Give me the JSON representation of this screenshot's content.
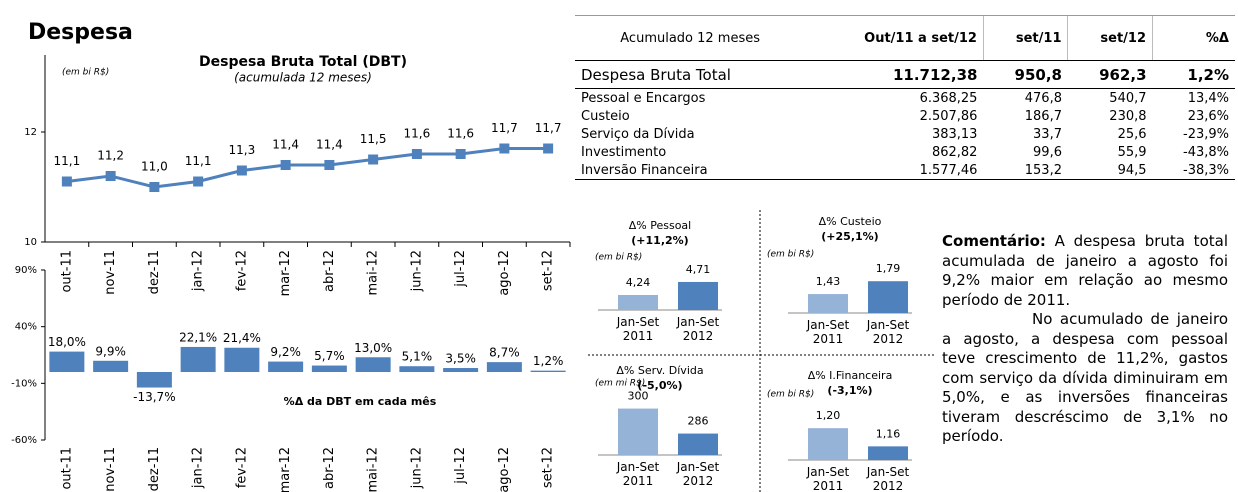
{
  "title": "Despesa",
  "chart_data": [
    {
      "type": "line",
      "title": "Despesa Bruta Total (DBT)",
      "subtitle": "(acumulada 12 meses)",
      "unit": "(em bi R$)",
      "categories": [
        "out-11",
        "nov-11",
        "dez-11",
        "jan-12",
        "fev-12",
        "mar-12",
        "abr-12",
        "mai-12",
        "jun-12",
        "jul-12",
        "ago-12",
        "set-12"
      ],
      "values": [
        11.1,
        11.2,
        11.0,
        11.1,
        11.3,
        11.4,
        11.4,
        11.5,
        11.6,
        11.6,
        11.7,
        11.7
      ],
      "value_labels": [
        "11,1",
        "11,2",
        "11,0",
        "11,1",
        "11,3",
        "11,4",
        "11,4",
        "11,5",
        "11,6",
        "11,6",
        "11,7",
        "11,7"
      ],
      "color": "#4f81bd",
      "ylim": [
        10,
        13.4
      ],
      "yticks": [
        10,
        12
      ]
    },
    {
      "type": "bar",
      "title": "%Δ da DBT em cada mês",
      "categories": [
        "out-11",
        "nov-11",
        "dez-11",
        "jan-12",
        "fev-12",
        "mar-12",
        "abr-12",
        "mai-12",
        "jun-12",
        "jul-12",
        "ago-12",
        "set-12"
      ],
      "values": [
        18.0,
        9.9,
        -13.7,
        22.1,
        21.4,
        9.2,
        5.7,
        13.0,
        5.1,
        3.5,
        8.7,
        1.2
      ],
      "value_labels": [
        "18,0%",
        "9,9%",
        "-13,7%",
        "22,1%",
        "21,4%",
        "9,2%",
        "5,7%",
        "13,0%",
        "5,1%",
        "3,5%",
        "8,7%",
        "1,2%"
      ],
      "color": "#4f81bd",
      "ylim": [
        -60,
        90
      ],
      "yticks": [
        {
          "value": -60,
          "label": "-60%"
        },
        {
          "value": -10,
          "label": "-10%"
        },
        {
          "value": 40,
          "label": "40%"
        },
        {
          "value": 90,
          "label": "90%"
        }
      ]
    },
    {
      "type": "mini-bar",
      "title": "Δ% Pessoal",
      "subtitle": "(+11,2%)",
      "unit": "(em bi R$)",
      "categories": [
        "Jan-Set 2011",
        "Jan-Set 2012"
      ],
      "values": [
        4.24,
        4.71
      ],
      "value_labels": [
        "4,24",
        "4,71"
      ],
      "colors": [
        "#95b3d7",
        "#4f81bd"
      ],
      "ylim": [
        3.7,
        5.5
      ]
    },
    {
      "type": "mini-bar",
      "title": "Δ% Custeio",
      "subtitle": "(+25,1%)",
      "unit": "(em bi R$)",
      "categories": [
        "Jan-Set 2011",
        "Jan-Set 2012"
      ],
      "values": [
        1.43,
        1.79
      ],
      "value_labels": [
        "1,43",
        "1,79"
      ],
      "colors": [
        "#95b3d7",
        "#4f81bd"
      ],
      "ylim": [
        0.9,
        2.3
      ]
    },
    {
      "type": "mini-bar",
      "title": "Δ% Serv. Dívida",
      "subtitle": "(-5,0%)",
      "unit": "(em mi R$)",
      "categories": [
        "Jan-Set 2011",
        "Jan-Set 2012"
      ],
      "values": [
        300,
        286
      ],
      "colors": [
        "#95b3d7",
        "#4f81bd"
      ],
      "ylim": [
        274,
        302
      ]
    },
    {
      "type": "mini-bar",
      "title": "Δ% I.Financeira",
      "subtitle": "(-3,1%)",
      "unit": "(em bi R$)",
      "categories": [
        "Jan-Set 2011",
        "Jan-Set 2012"
      ],
      "values": [
        1.2,
        1.16
      ],
      "value_labels": [
        "1,20",
        "1,16"
      ],
      "colors": [
        "#95b3d7",
        "#4f81bd"
      ],
      "ylim": [
        1.13,
        1.24
      ]
    }
  ],
  "table": {
    "header": [
      "Acumulado 12 meses",
      "Out/11 a set/12",
      "set/11",
      "set/12",
      "%Δ"
    ],
    "rows": [
      [
        "Despesa Bruta Total",
        "11.712,38",
        "950,8",
        "962,3",
        "1,2%"
      ],
      [
        "Pessoal e Encargos",
        "6.368,25",
        "476,8",
        "540,7",
        "13,4%"
      ],
      [
        "Custeio",
        "2.507,86",
        "186,7",
        "230,8",
        "23,6%"
      ],
      [
        "Serviço da Dívida",
        "383,13",
        "33,7",
        "25,6",
        "-23,9%"
      ],
      [
        "Investimento",
        "862,82",
        "99,6",
        "55,9",
        "-43,8%"
      ],
      [
        "Inversão Financeira",
        "1.577,46",
        "153,2",
        "94,5",
        "-38,3%"
      ]
    ]
  },
  "comment": {
    "label": "Comentário:",
    "paragraphs": [
      "A despesa bruta total acumulada de janeiro a agosto foi 9,2% maior em relação ao mesmo período de 2011.",
      "No acumulado de janeiro a agosto, a despesa com pessoal teve crescimento de 11,2%, gastos com serviço da dívida diminuiram em 5,0%, e as inversões financeiras tiveram descréscimo de 3,1% no período."
    ]
  }
}
